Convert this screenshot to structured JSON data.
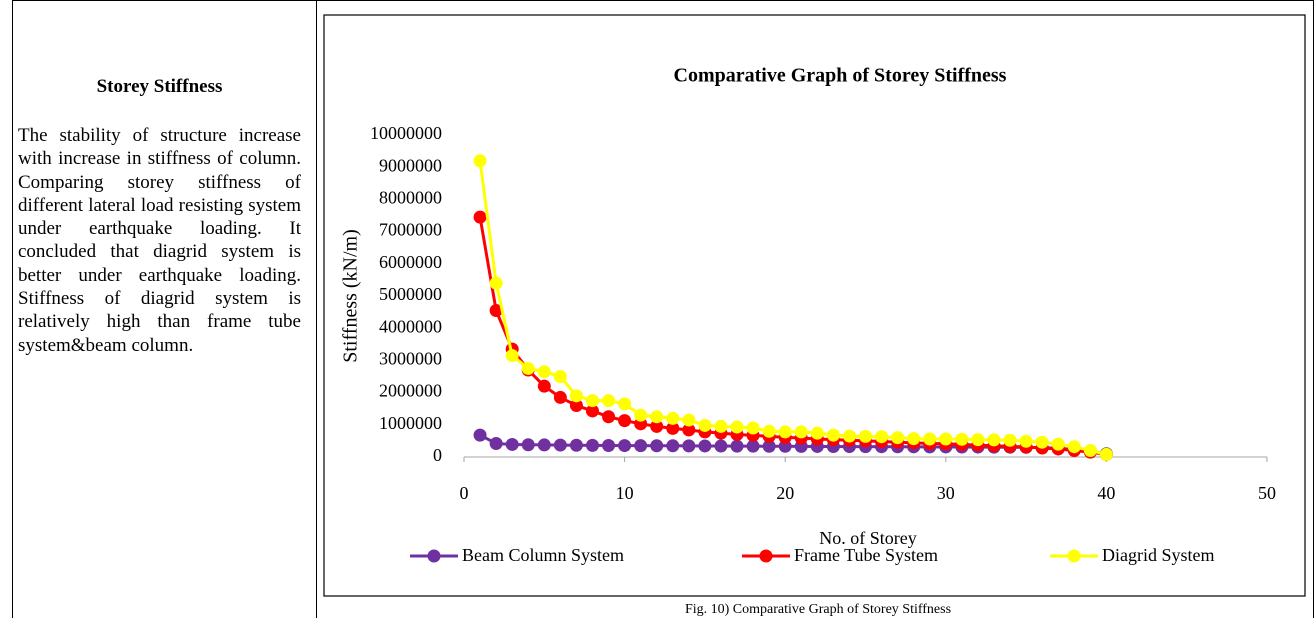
{
  "section_title": "Storey Stiffness",
  "paragraph": "The stability of structure increase with increase in stiffness of column. Comparing storey stiffness of different lateral load resisting system under earthquake loading. It concluded that diagrid system is better under earthquake loading. Stiffness of diagrid system is relatively high than frame tube system&beam column.",
  "chart_data": {
    "type": "line",
    "title": "Comparative Graph of Storey Stiffness",
    "x_label": "No. of Storey",
    "y_label": "Stiffness (kN/m)",
    "x": [
      1,
      2,
      3,
      4,
      5,
      6,
      7,
      8,
      9,
      10,
      11,
      12,
      13,
      14,
      15,
      16,
      17,
      18,
      19,
      20,
      21,
      22,
      23,
      24,
      25,
      26,
      27,
      28,
      29,
      30,
      31,
      32,
      33,
      34,
      35,
      36,
      37,
      38,
      39,
      40
    ],
    "series": [
      {
        "name": "Beam Column System",
        "color": "#7030a0",
        "values": [
          680000,
          420000,
          390000,
          380000,
          375000,
          370000,
          365000,
          360000,
          358000,
          355000,
          352000,
          350000,
          348000,
          345000,
          343000,
          340000,
          338000,
          336000,
          334000,
          332000,
          330000,
          328000,
          326000,
          324000,
          322000,
          320000,
          318000,
          316000,
          314000,
          312000,
          310000,
          308000,
          306000,
          304000,
          300000,
          290000,
          270000,
          230000,
          170000,
          100000
        ]
      },
      {
        "name": "Frame Tube System",
        "color": "#ff0000",
        "values": [
          7450000,
          4550000,
          3350000,
          2700000,
          2200000,
          1850000,
          1600000,
          1430000,
          1250000,
          1130000,
          1030000,
          950000,
          890000,
          840000,
          780000,
          740000,
          700000,
          670000,
          640000,
          610000,
          590000,
          560000,
          540000,
          520000,
          500000,
          480000,
          460000,
          440000,
          420000,
          410000,
          390000,
          370000,
          350000,
          330000,
          310000,
          280000,
          250000,
          200000,
          150000,
          80000
        ]
      },
      {
        "name": "Diagrid System",
        "color": "#ffff00",
        "values": [
          9200000,
          5400000,
          3150000,
          2750000,
          2650000,
          2500000,
          1900000,
          1750000,
          1750000,
          1650000,
          1300000,
          1250000,
          1200000,
          1150000,
          980000,
          950000,
          930000,
          900000,
          800000,
          780000,
          780000,
          740000,
          680000,
          650000,
          640000,
          630000,
          600000,
          570000,
          560000,
          560000,
          550000,
          540000,
          530000,
          520000,
          490000,
          460000,
          400000,
          320000,
          200000,
          80000
        ]
      }
    ],
    "xlim": [
      0,
      50
    ],
    "xticks": [
      0,
      10,
      20,
      30,
      40,
      50
    ],
    "ylim": [
      0,
      10000000
    ],
    "yticks": [
      0,
      1000000,
      2000000,
      3000000,
      4000000,
      5000000,
      6000000,
      7000000,
      8000000,
      9000000,
      10000000
    ],
    "legend": "bottom"
  },
  "caption": "Fig. 10) Comparative Graph of Storey Stiffness"
}
